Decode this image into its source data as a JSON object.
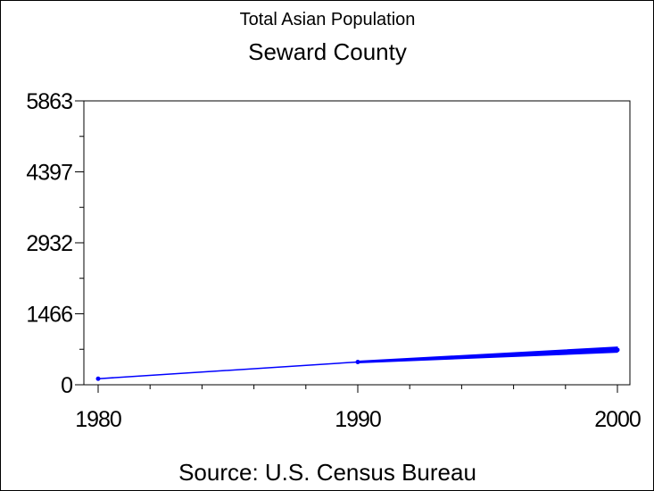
{
  "chart_data": {
    "type": "line",
    "title": "Total Asian Population",
    "subtitle": "Seward County",
    "source": "Source: U.S. Census Bureau",
    "xlabel": "",
    "ylabel": "",
    "x": [
      1980,
      1990,
      2000
    ],
    "x_tick_labels": [
      "1980",
      "1990",
      "2000"
    ],
    "xlim": [
      1980,
      2000
    ],
    "y_tick_labels": [
      "0",
      "1466",
      "2932",
      "4397",
      "5863"
    ],
    "y_ticks": [
      0,
      1466,
      2932,
      4397,
      5863
    ],
    "ylim": [
      0,
      5863
    ],
    "series": [
      {
        "values": [
          125,
          470,
          720
        ]
      }
    ],
    "band_2000": [
      670,
      780
    ],
    "grid": false,
    "legend": "none",
    "colors": {
      "line": "#0000ff",
      "axis": "#000000",
      "background": "#ffffff"
    }
  }
}
